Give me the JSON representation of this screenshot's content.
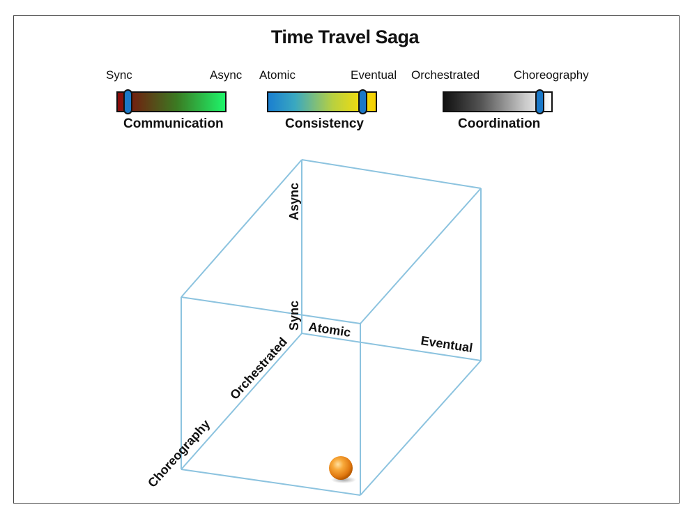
{
  "title": "Time Travel Saga",
  "sliders": [
    {
      "left_label": "Sync",
      "right_label": "Async",
      "name": "Communication",
      "value": 0.05
    },
    {
      "left_label": "Atomic",
      "right_label": "Eventual",
      "name": "Consistency",
      "value": 0.88
    },
    {
      "left_label": "Orchestrated",
      "right_label": "Choreography",
      "name": "Coordination",
      "value": 0.9
    }
  ],
  "cube_axes": {
    "async": "Async",
    "sync": "Sync",
    "atomic": "Atomic",
    "eventual": "Eventual",
    "orchestrated": "Orchestrated",
    "choreography": "Choreography"
  },
  "marker": {
    "communication": "Sync",
    "consistency": "Eventual",
    "coordination": "Choreography"
  },
  "colors": {
    "cube_edge": "#8cc3df",
    "knob": "#1a78c8",
    "marker": "#f28c1c",
    "communication_gradient": [
      "#8b0a0a",
      "#2aa83a",
      "#1ef56a"
    ],
    "consistency_gradient": [
      "#1a7fd0",
      "#e8e21a",
      "#f5d000"
    ],
    "coordination_gradient": [
      "#111111",
      "#c8c8c8",
      "#ffffff"
    ]
  }
}
